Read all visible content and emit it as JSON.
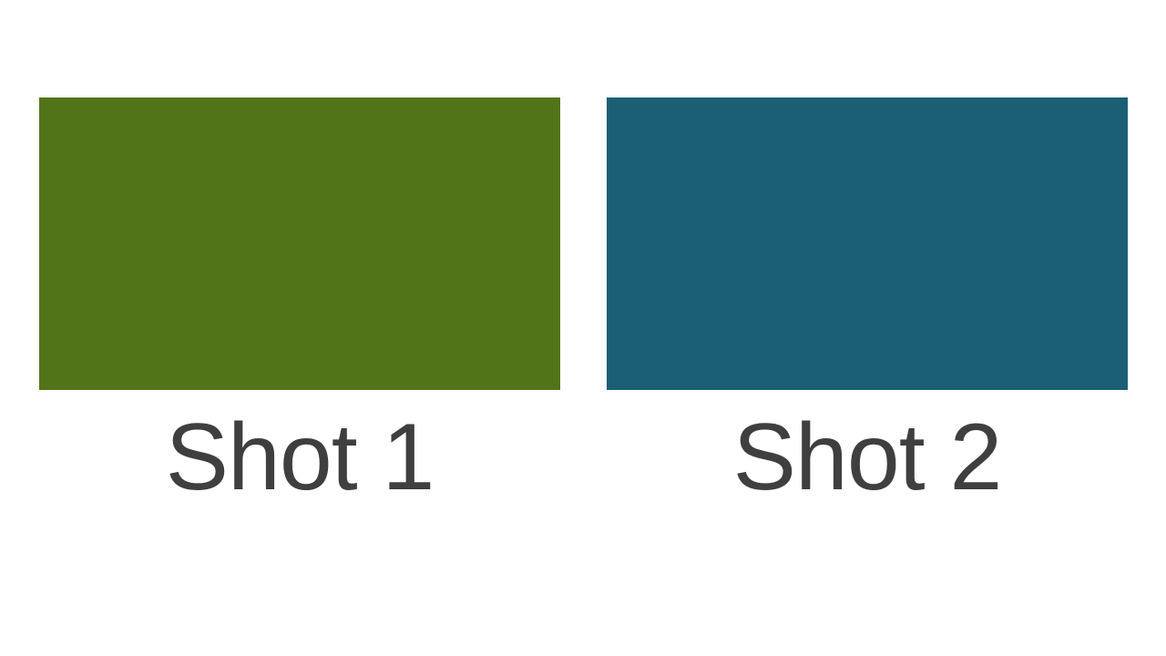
{
  "shots": [
    {
      "label": "Shot 1",
      "color": "#527419"
    },
    {
      "label": "Shot 2",
      "color": "#1a5f74"
    }
  ],
  "caption_color": "#3f3f3f",
  "background_color": "#ffffff"
}
